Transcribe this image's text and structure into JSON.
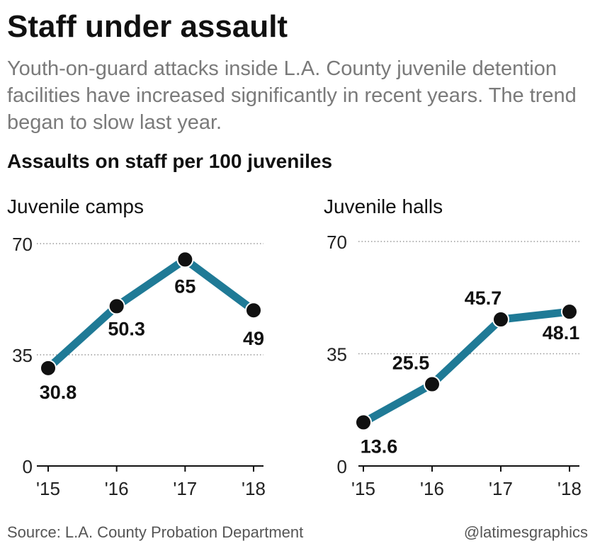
{
  "header": {
    "title": "Staff under assault",
    "subtitle": "Youth-on-guard attacks inside L.A. County juvenile detention facilities have increased significantly in recent years. The trend began to slow last year.",
    "section_label": "Assaults on staff per 100 juveniles"
  },
  "footer": {
    "source": "Source: L.A. County Probation Department",
    "credit": "@latimesgraphics"
  },
  "colors": {
    "line": "#1f7a96",
    "marker": "#111111",
    "grid": "#999999"
  },
  "chart_data": [
    {
      "type": "line",
      "title": "Juvenile camps",
      "categories": [
        "'15",
        "'16",
        "'17",
        "'18"
      ],
      "values": [
        30.8,
        50.3,
        65,
        49
      ],
      "data_labels": [
        "30.8",
        "50.3",
        "65",
        "49"
      ],
      "yticks": [
        "0",
        "35",
        "70"
      ],
      "ylim": [
        0,
        70
      ],
      "grid": true
    },
    {
      "type": "line",
      "title": "Juvenile halls",
      "categories": [
        "'15",
        "'16",
        "'17",
        "'18"
      ],
      "values": [
        13.6,
        25.5,
        45.7,
        48.1
      ],
      "data_labels": [
        "13.6",
        "25.5",
        "45.7",
        "48.1"
      ],
      "yticks": [
        "0",
        "35",
        "70"
      ],
      "ylim": [
        0,
        70
      ],
      "grid": true
    }
  ]
}
